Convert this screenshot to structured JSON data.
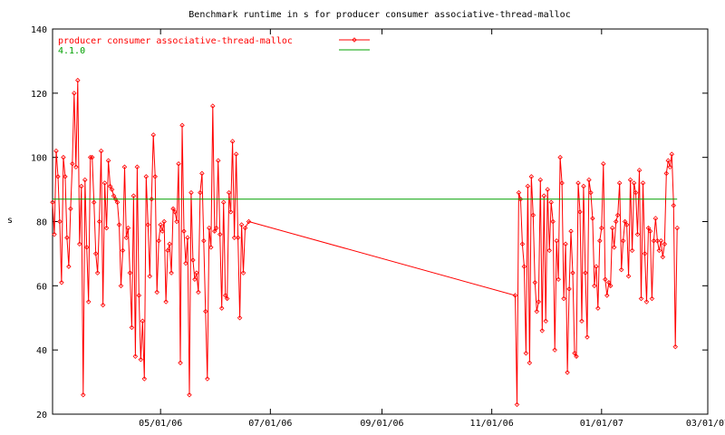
{
  "chart_data": {
    "type": "line",
    "title": "Benchmark runtime in s for producer consumer associative-thread-malloc",
    "xlabel": "",
    "ylabel": "s",
    "xlim": [
      "2006-03-02",
      "2007-03-01"
    ],
    "ylim": [
      20,
      140
    ],
    "x_ticks": [
      {
        "label": "05/01/06",
        "date": "2006-05-01"
      },
      {
        "label": "07/01/06",
        "date": "2006-07-01"
      },
      {
        "label": "09/01/06",
        "date": "2006-09-01"
      },
      {
        "label": "11/01/06",
        "date": "2006-11-01"
      },
      {
        "label": "01/01/07",
        "date": "2007-01-01"
      },
      {
        "label": "03/01/07",
        "date": "2007-03-01"
      }
    ],
    "y_ticks": [
      20,
      40,
      60,
      80,
      100,
      120,
      140
    ],
    "grid": false,
    "legend_position": "top-left",
    "series": [
      {
        "name": "producer consumer associative-thread-malloc",
        "color": "#ff0000",
        "marker": "diamond",
        "points": [
          [
            "2006-03-02",
            86
          ],
          [
            "2006-03-03",
            76
          ],
          [
            "2006-03-04",
            102
          ],
          [
            "2006-03-05",
            94
          ],
          [
            "2006-03-06",
            80
          ],
          [
            "2006-03-07",
            61
          ],
          [
            "2006-03-08",
            100
          ],
          [
            "2006-03-09",
            94
          ],
          [
            "2006-03-10",
            75
          ],
          [
            "2006-03-11",
            66
          ],
          [
            "2006-03-12",
            84
          ],
          [
            "2006-03-13",
            98
          ],
          [
            "2006-03-14",
            120
          ],
          [
            "2006-03-15",
            97
          ],
          [
            "2006-03-16",
            124
          ],
          [
            "2006-03-17",
            73
          ],
          [
            "2006-03-18",
            91
          ],
          [
            "2006-03-19",
            26
          ],
          [
            "2006-03-20",
            93
          ],
          [
            "2006-03-21",
            72
          ],
          [
            "2006-03-22",
            55
          ],
          [
            "2006-03-23",
            100
          ],
          [
            "2006-03-24",
            100
          ],
          [
            "2006-03-25",
            86
          ],
          [
            "2006-03-26",
            70
          ],
          [
            "2006-03-27",
            64
          ],
          [
            "2006-03-28",
            80
          ],
          [
            "2006-03-29",
            102
          ],
          [
            "2006-03-30",
            54
          ],
          [
            "2006-03-31",
            92
          ],
          [
            "2006-04-01",
            78
          ],
          [
            "2006-04-02",
            99
          ],
          [
            "2006-04-03",
            91
          ],
          [
            "2006-04-04",
            90
          ],
          [
            "2006-04-05",
            88
          ],
          [
            "2006-04-06",
            87
          ],
          [
            "2006-04-07",
            86
          ],
          [
            "2006-04-08",
            79
          ],
          [
            "2006-04-09",
            60
          ],
          [
            "2006-04-10",
            71
          ],
          [
            "2006-04-11",
            97
          ],
          [
            "2006-04-12",
            75
          ],
          [
            "2006-04-13",
            78
          ],
          [
            "2006-04-14",
            64
          ],
          [
            "2006-04-15",
            47
          ],
          [
            "2006-04-16",
            88
          ],
          [
            "2006-04-17",
            38
          ],
          [
            "2006-04-18",
            97
          ],
          [
            "2006-04-19",
            57
          ],
          [
            "2006-04-20",
            37
          ],
          [
            "2006-04-21",
            49
          ],
          [
            "2006-04-22",
            31
          ],
          [
            "2006-04-23",
            94
          ],
          [
            "2006-04-24",
            79
          ],
          [
            "2006-04-25",
            63
          ],
          [
            "2006-04-26",
            87
          ],
          [
            "2006-04-27",
            107
          ],
          [
            "2006-04-28",
            94
          ],
          [
            "2006-04-29",
            58
          ],
          [
            "2006-04-30",
            74
          ],
          [
            "2006-05-01",
            79
          ],
          [
            "2006-05-02",
            77
          ],
          [
            "2006-05-03",
            80
          ],
          [
            "2006-05-04",
            55
          ],
          [
            "2006-05-05",
            71
          ],
          [
            "2006-05-06",
            73
          ],
          [
            "2006-05-07",
            64
          ],
          [
            "2006-05-08",
            84
          ],
          [
            "2006-05-09",
            83
          ],
          [
            "2006-05-10",
            80
          ],
          [
            "2006-05-11",
            98
          ],
          [
            "2006-05-12",
            36
          ],
          [
            "2006-05-13",
            110
          ],
          [
            "2006-05-14",
            77
          ],
          [
            "2006-05-15",
            67
          ],
          [
            "2006-05-16",
            75
          ],
          [
            "2006-05-17",
            26
          ],
          [
            "2006-05-18",
            89
          ],
          [
            "2006-05-19",
            68
          ],
          [
            "2006-05-20",
            62
          ],
          [
            "2006-05-21",
            64
          ],
          [
            "2006-05-22",
            58
          ],
          [
            "2006-05-23",
            89
          ],
          [
            "2006-05-24",
            95
          ],
          [
            "2006-05-25",
            74
          ],
          [
            "2006-05-26",
            52
          ],
          [
            "2006-05-27",
            31
          ],
          [
            "2006-05-28",
            78
          ],
          [
            "2006-05-29",
            72
          ],
          [
            "2006-05-30",
            116
          ],
          [
            "2006-05-31",
            77
          ],
          [
            "2006-06-01",
            78
          ],
          [
            "2006-06-02",
            99
          ],
          [
            "2006-06-03",
            76
          ],
          [
            "2006-06-04",
            53
          ],
          [
            "2006-06-05",
            86
          ],
          [
            "2006-06-06",
            57
          ],
          [
            "2006-06-07",
            56
          ],
          [
            "2006-06-08",
            89
          ],
          [
            "2006-06-09",
            83
          ],
          [
            "2006-06-10",
            105
          ],
          [
            "2006-06-11",
            75
          ],
          [
            "2006-06-12",
            101
          ],
          [
            "2006-06-13",
            75
          ],
          [
            "2006-06-14",
            50
          ],
          [
            "2006-06-15",
            79
          ],
          [
            "2006-06-16",
            64
          ],
          [
            "2006-06-17",
            78
          ],
          [
            "2006-06-19",
            80
          ],
          [
            "2006-11-14",
            57
          ],
          [
            "2006-11-15",
            23
          ],
          [
            "2006-11-16",
            89
          ],
          [
            "2006-11-17",
            87
          ],
          [
            "2006-11-18",
            73
          ],
          [
            "2006-11-19",
            66
          ],
          [
            "2006-11-20",
            39
          ],
          [
            "2006-11-21",
            91
          ],
          [
            "2006-11-22",
            36
          ],
          [
            "2006-11-23",
            94
          ],
          [
            "2006-11-24",
            82
          ],
          [
            "2006-11-25",
            61
          ],
          [
            "2006-11-26",
            52
          ],
          [
            "2006-11-27",
            55
          ],
          [
            "2006-11-28",
            93
          ],
          [
            "2006-11-29",
            46
          ],
          [
            "2006-11-30",
            88
          ],
          [
            "2006-12-01",
            49
          ],
          [
            "2006-12-02",
            90
          ],
          [
            "2006-12-03",
            71
          ],
          [
            "2006-12-04",
            86
          ],
          [
            "2006-12-05",
            80
          ],
          [
            "2006-12-06",
            40
          ],
          [
            "2006-12-07",
            74
          ],
          [
            "2006-12-08",
            62
          ],
          [
            "2006-12-09",
            100
          ],
          [
            "2006-12-10",
            92
          ],
          [
            "2006-12-11",
            56
          ],
          [
            "2006-12-12",
            73
          ],
          [
            "2006-12-13",
            33
          ],
          [
            "2006-12-14",
            59
          ],
          [
            "2006-12-15",
            77
          ],
          [
            "2006-12-16",
            64
          ],
          [
            "2006-12-17",
            39
          ],
          [
            "2006-12-18",
            38
          ],
          [
            "2006-12-19",
            92
          ],
          [
            "2006-12-20",
            83
          ],
          [
            "2006-12-21",
            49
          ],
          [
            "2006-12-22",
            91
          ],
          [
            "2006-12-23",
            64
          ],
          [
            "2006-12-24",
            44
          ],
          [
            "2006-12-25",
            93
          ],
          [
            "2006-12-26",
            89
          ],
          [
            "2006-12-27",
            81
          ],
          [
            "2006-12-28",
            60
          ],
          [
            "2006-12-29",
            66
          ],
          [
            "2006-12-30",
            53
          ],
          [
            "2006-12-31",
            74
          ],
          [
            "2007-01-01",
            78
          ],
          [
            "2007-01-02",
            98
          ],
          [
            "2007-01-03",
            62
          ],
          [
            "2007-01-04",
            57
          ],
          [
            "2007-01-05",
            61
          ],
          [
            "2007-01-06",
            60
          ],
          [
            "2007-01-07",
            78
          ],
          [
            "2007-01-08",
            72
          ],
          [
            "2007-01-09",
            80
          ],
          [
            "2007-01-10",
            82
          ],
          [
            "2007-01-11",
            92
          ],
          [
            "2007-01-12",
            65
          ],
          [
            "2007-01-13",
            74
          ],
          [
            "2007-01-14",
            80
          ],
          [
            "2007-01-15",
            79
          ],
          [
            "2007-01-16",
            63
          ],
          [
            "2007-01-17",
            93
          ],
          [
            "2007-01-18",
            71
          ],
          [
            "2007-01-19",
            92
          ],
          [
            "2007-01-20",
            89
          ],
          [
            "2007-01-21",
            76
          ],
          [
            "2007-01-22",
            96
          ],
          [
            "2007-01-23",
            56
          ],
          [
            "2007-01-24",
            92
          ],
          [
            "2007-01-25",
            70
          ],
          [
            "2007-01-26",
            55
          ],
          [
            "2007-01-27",
            78
          ],
          [
            "2007-01-28",
            77
          ],
          [
            "2007-01-29",
            56
          ],
          [
            "2007-01-30",
            74
          ],
          [
            "2007-01-31",
            81
          ],
          [
            "2007-02-01",
            74
          ],
          [
            "2007-02-02",
            71
          ],
          [
            "2007-02-03",
            74
          ],
          [
            "2007-02-04",
            69
          ],
          [
            "2007-02-05",
            73
          ],
          [
            "2007-02-06",
            95
          ],
          [
            "2007-02-07",
            99
          ],
          [
            "2007-02-08",
            97
          ],
          [
            "2007-02-09",
            101
          ],
          [
            "2007-02-10",
            85
          ],
          [
            "2007-02-11",
            41
          ],
          [
            "2007-02-12",
            78
          ]
        ]
      },
      {
        "name": "4.1.0",
        "color": "#00a000",
        "marker": "none",
        "points": [
          [
            "2006-03-02",
            87
          ],
          [
            "2007-02-12",
            87
          ]
        ]
      }
    ]
  }
}
